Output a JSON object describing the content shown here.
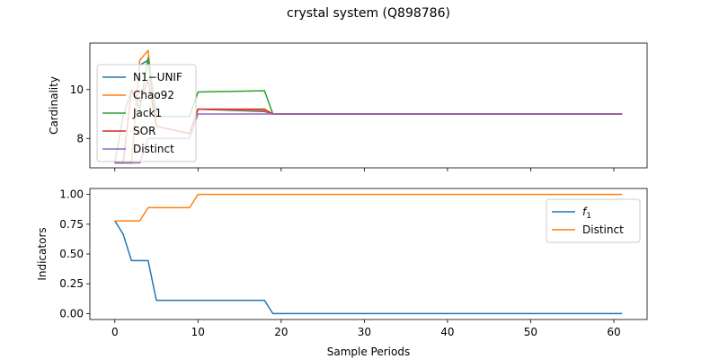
{
  "figure": {
    "title": "crystal system (Q898786)",
    "xlabel": "Sample Periods"
  },
  "chart_data": [
    {
      "type": "line",
      "ylabel": "Cardinality",
      "xlim": [
        -3,
        64
      ],
      "ylim": [
        6.8,
        11.9
      ],
      "xticks": [
        0,
        10,
        20,
        30,
        40,
        50,
        60
      ],
      "yticks": [
        8,
        10
      ],
      "legend": "upper-left",
      "series": [
        {
          "name": "N1−UNIF",
          "color": "#1f77b4",
          "points": [
            [
              0,
              7
            ],
            [
              1,
              7
            ],
            [
              2,
              7
            ],
            [
              3,
              11
            ],
            [
              4,
              11.2
            ],
            [
              5,
              8.5
            ],
            [
              9,
              8.2
            ],
            [
              10,
              9.2
            ],
            [
              18,
              9.1
            ],
            [
              19,
              9.0
            ],
            [
              61,
              9.0
            ]
          ]
        },
        {
          "name": "Chao92",
          "color": "#ff7f0e",
          "points": [
            [
              0,
              7
            ],
            [
              1,
              7
            ],
            [
              2,
              7
            ],
            [
              3,
              11.2
            ],
            [
              4,
              11.6
            ],
            [
              5,
              8.5
            ],
            [
              9,
              8.2
            ],
            [
              10,
              9.2
            ],
            [
              18,
              9.15
            ],
            [
              19,
              9.0
            ],
            [
              61,
              9.0
            ]
          ]
        },
        {
          "name": "Jack1",
          "color": "#2ca02c",
          "points": [
            [
              0,
              7
            ],
            [
              1,
              8.9
            ],
            [
              2,
              10.0
            ],
            [
              3,
              9.2
            ],
            [
              4,
              11.3
            ],
            [
              5,
              8.9
            ],
            [
              9,
              8.9
            ],
            [
              10,
              9.9
            ],
            [
              18,
              9.95
            ],
            [
              19,
              9.0
            ],
            [
              61,
              9.0
            ]
          ]
        },
        {
          "name": "SOR",
          "color": "#d62728",
          "points": [
            [
              0,
              7
            ],
            [
              1,
              7
            ],
            [
              2,
              10.0
            ],
            [
              3,
              9.5
            ],
            [
              4,
              10.4
            ],
            [
              5,
              8.5
            ],
            [
              9,
              8.2
            ],
            [
              10,
              9.2
            ],
            [
              18,
              9.2
            ],
            [
              19,
              9.0
            ],
            [
              61,
              9.0
            ]
          ]
        },
        {
          "name": "Distinct",
          "color": "#9467bd",
          "points": [
            [
              0,
              7
            ],
            [
              1,
              7
            ],
            [
              2,
              7
            ],
            [
              3,
              7
            ],
            [
              4,
              8
            ],
            [
              5,
              8
            ],
            [
              9,
              8
            ],
            [
              10,
              9
            ],
            [
              61,
              9
            ]
          ]
        }
      ]
    },
    {
      "type": "line",
      "ylabel": "Indicators",
      "xlim": [
        -3,
        64
      ],
      "ylim": [
        -0.05,
        1.05
      ],
      "xticks": [
        0,
        10,
        20,
        30,
        40,
        50,
        60
      ],
      "yticks": [
        0.0,
        0.25,
        0.5,
        0.75,
        1.0
      ],
      "ytick_labels": [
        "0.00",
        "0.25",
        "0.50",
        "0.75",
        "1.00"
      ],
      "legend": "upper-right",
      "series": [
        {
          "name": "f1",
          "color": "#1f77b4",
          "points": [
            [
              0,
              0.778
            ],
            [
              1,
              0.667
            ],
            [
              2,
              0.444
            ],
            [
              4,
              0.444
            ],
            [
              5,
              0.111
            ],
            [
              18,
              0.111
            ],
            [
              19,
              0.0
            ],
            [
              61,
              0.0
            ]
          ]
        },
        {
          "name": "Distinct",
          "color": "#ff7f0e",
          "points": [
            [
              0,
              0.778
            ],
            [
              3,
              0.778
            ],
            [
              4,
              0.889
            ],
            [
              9,
              0.889
            ],
            [
              10,
              1.0
            ],
            [
              61,
              1.0
            ]
          ]
        }
      ]
    }
  ]
}
